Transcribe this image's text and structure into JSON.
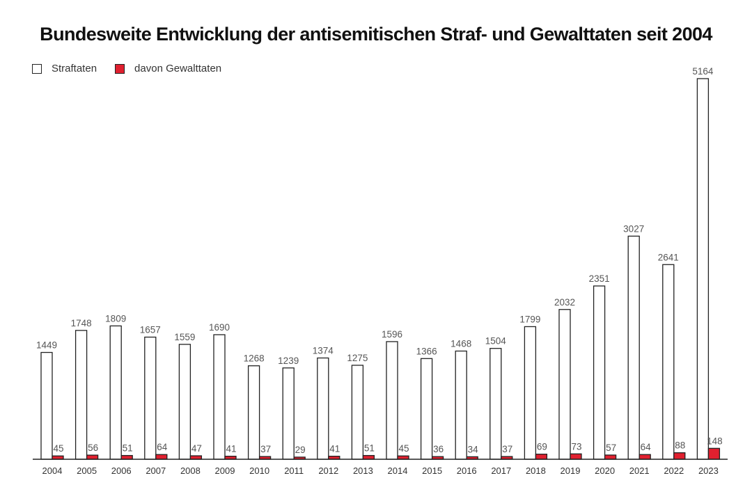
{
  "chart_data": {
    "type": "bar",
    "title": "Bundesweite Entwicklung der antisemitischen Straf- und Gewalttaten seit 2004",
    "categories": [
      "2004",
      "2005",
      "2006",
      "2007",
      "2008",
      "2009",
      "2010",
      "2011",
      "2012",
      "2013",
      "2014",
      "2015",
      "2016",
      "2017",
      "2018",
      "2019",
      "2020",
      "2021",
      "2022",
      "2023"
    ],
    "series": [
      {
        "name": "Straftaten",
        "color": "#ffffff",
        "values": [
          1449,
          1748,
          1809,
          1657,
          1559,
          1690,
          1268,
          1239,
          1374,
          1275,
          1596,
          1366,
          1468,
          1504,
          1799,
          2032,
          2351,
          3027,
          2641,
          5164
        ]
      },
      {
        "name": "davon Gewalttaten",
        "color": "#e0202f",
        "values": [
          45,
          56,
          51,
          64,
          47,
          41,
          37,
          29,
          41,
          51,
          45,
          36,
          34,
          37,
          69,
          73,
          57,
          64,
          88,
          148
        ]
      }
    ],
    "ylim": [
      0,
      5164
    ],
    "grid": false,
    "legend": "top-left",
    "data_labels": true
  }
}
